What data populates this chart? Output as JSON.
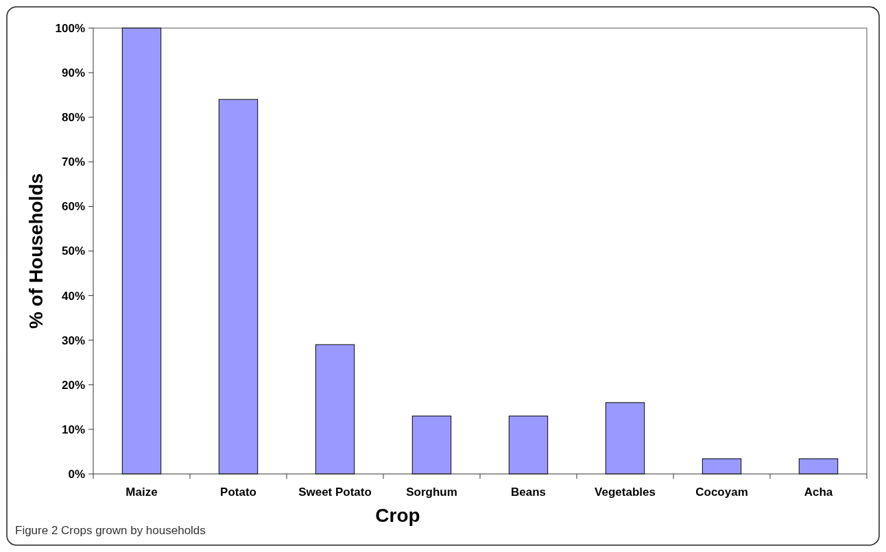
{
  "chart_data": {
    "type": "bar",
    "xlabel": "Crop",
    "ylabel": "% of Households",
    "categories": [
      "Maize",
      "Potato",
      "Sweet Potato",
      "Sorghum",
      "Beans",
      "Vegetables",
      "Cocoyam",
      "Acha"
    ],
    "values": [
      100,
      84,
      29,
      13,
      13,
      16,
      3.4,
      3.4
    ],
    "color": "#9999ff",
    "ylim": [
      0,
      100
    ],
    "yticks": [
      {
        "value": 0,
        "label": "0%"
      },
      {
        "value": 10,
        "label": "10%"
      },
      {
        "value": 20,
        "label": "20%"
      },
      {
        "value": 30,
        "label": "30%"
      },
      {
        "value": 40,
        "label": "40%"
      },
      {
        "value": 50,
        "label": "50%"
      },
      {
        "value": 60,
        "label": "60%"
      },
      {
        "value": 70,
        "label": "70%"
      },
      {
        "value": 80,
        "label": "80%"
      },
      {
        "value": 90,
        "label": "90%"
      },
      {
        "value": 100,
        "label": "100%"
      }
    ],
    "grid": false,
    "annotations": [
      "Figure 2 Crops grown by households"
    ]
  }
}
